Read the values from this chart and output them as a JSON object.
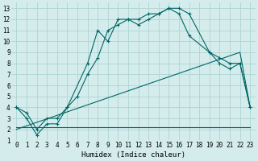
{
  "title": "",
  "xlabel": "Humidex (Indice chaleur)",
  "bg_color": "#d4ecec",
  "line_color": "#006666",
  "grid_color": "#aed4d4",
  "xlim": [
    -0.5,
    23.5
  ],
  "ylim": [
    1,
    13.5
  ],
  "xticks": [
    0,
    1,
    2,
    3,
    4,
    5,
    6,
    7,
    8,
    9,
    10,
    11,
    12,
    13,
    14,
    15,
    16,
    17,
    18,
    19,
    20,
    21,
    22,
    23
  ],
  "yticks": [
    1,
    2,
    3,
    4,
    5,
    6,
    7,
    8,
    9,
    10,
    11,
    12,
    13
  ],
  "line1": {
    "x": [
      0,
      1,
      2,
      3,
      4,
      5,
      7,
      8,
      9,
      10,
      11,
      12,
      13,
      14,
      15,
      16,
      17,
      19,
      20,
      21,
      22,
      23
    ],
    "y": [
      4,
      3.5,
      2,
      3,
      3,
      4,
      8,
      11,
      10,
      12,
      12,
      11.5,
      12,
      12.5,
      13,
      13,
      12.5,
      9,
      8,
      7.5,
      8,
      4
    ]
  },
  "line2": {
    "x": [
      0,
      1,
      2,
      3,
      4,
      5,
      6,
      7,
      8,
      9,
      10,
      11,
      12,
      13,
      14,
      15,
      16,
      17,
      19,
      20,
      21,
      22,
      23
    ],
    "y": [
      4,
      3,
      1.5,
      2.5,
      2.5,
      4,
      5,
      7,
      8.5,
      11,
      11.5,
      12,
      12,
      12.5,
      12.5,
      13,
      12.5,
      10.5,
      9,
      8.5,
      8,
      8,
      4
    ]
  },
  "line3": {
    "x": [
      0,
      4,
      5,
      10,
      14,
      15,
      19,
      20,
      22,
      23
    ],
    "y": [
      2.2,
      2.2,
      2.2,
      2.2,
      2.2,
      2.2,
      2.2,
      2.2,
      2.2,
      2.2
    ]
  },
  "line4": {
    "x": [
      0,
      22,
      23
    ],
    "y": [
      2,
      9,
      4
    ]
  }
}
